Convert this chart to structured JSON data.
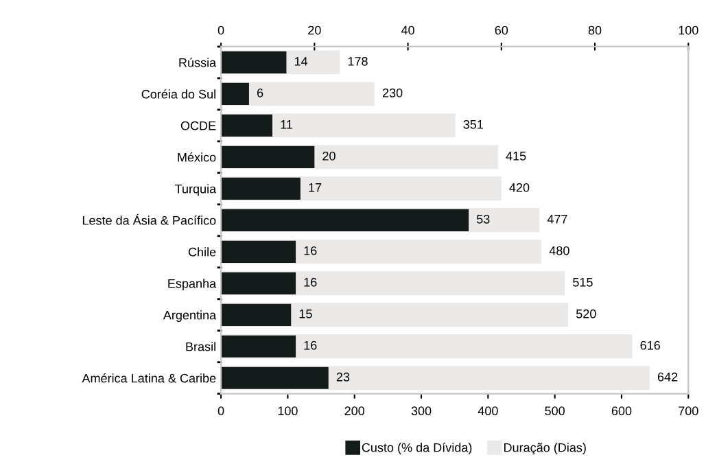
{
  "chart_data": {
    "type": "bar",
    "orientation": "horizontal",
    "categories": [
      "Rússia",
      "Coréia do Sul",
      "OCDE",
      "México",
      "Turquia",
      "Leste da Ásia & Pacífico",
      "Chile",
      "Espanha",
      "Argentina",
      "Brasil",
      "América Latina & Caribe"
    ],
    "series": [
      {
        "name": "Duração (Dias)",
        "color": "#ebe9e7",
        "values": [
          178,
          230,
          351,
          415,
          420,
          477,
          480,
          515,
          520,
          616,
          642
        ]
      },
      {
        "name": "Custo (% da Dívida)",
        "color": "#141c1b",
        "axis": "x2",
        "values": [
          14,
          6,
          11,
          20,
          17,
          53,
          16,
          16,
          15,
          16,
          23
        ]
      }
    ],
    "xlim": [
      0,
      700
    ],
    "xticks": [
      0,
      100,
      200,
      300,
      400,
      500,
      600,
      700
    ],
    "x2lim": [
      0,
      100
    ],
    "x2ticks": [
      0,
      20,
      40,
      60,
      80,
      100
    ],
    "data_labels": true,
    "grid": false,
    "legend": "bottom"
  }
}
